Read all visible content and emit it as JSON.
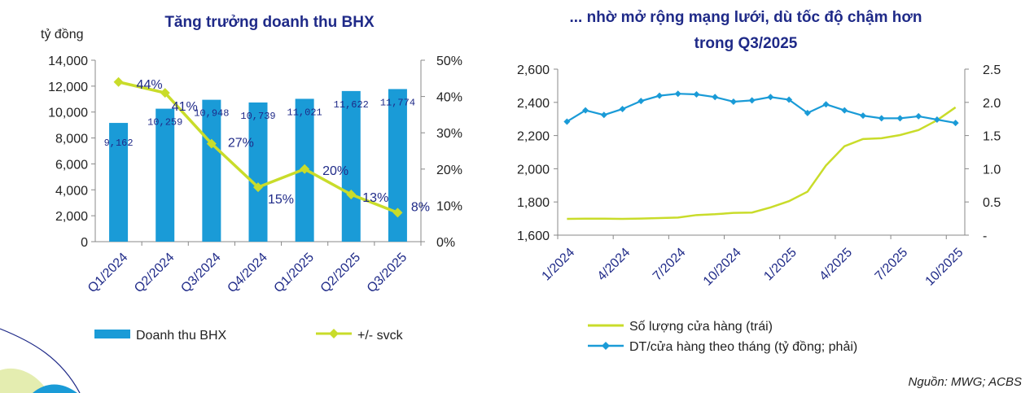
{
  "colors": {
    "bar": "#1a9bd7",
    "line": "#c9dc2a",
    "line2": "#1a9bd7",
    "title": "#1f2a88"
  },
  "source": "Nguồn: MWG; ACBS",
  "chart_data": [
    {
      "type": "bar",
      "title": "Tăng trưởng doanh thu BHX",
      "ylabel": "tỷ đồng",
      "categories": [
        "Q1/2024",
        "Q2/2024",
        "Q3/2024",
        "Q4/2024",
        "Q1/2025",
        "Q2/2025",
        "Q3/2025"
      ],
      "ylim": [
        0,
        14000
      ],
      "y_ticks": [
        "0",
        "2,000",
        "4,000",
        "6,000",
        "8,000",
        "10,000",
        "12,000",
        "14,000"
      ],
      "y2lim": [
        0,
        50
      ],
      "y2_ticks": [
        "0%",
        "10%",
        "20%",
        "30%",
        "40%",
        "50%"
      ],
      "legend": "bottom",
      "series": [
        {
          "name": "Doanh thu BHX",
          "type": "bar",
          "axis": "left",
          "values": [
            9162,
            10259,
            10948,
            10739,
            11021,
            11622,
            11774
          ],
          "labels": [
            "9,162",
            "10,259",
            "10,948",
            "10,739",
            "11,021",
            "11,622",
            "11,774"
          ]
        },
        {
          "name": "+/- svck",
          "type": "line",
          "axis": "right",
          "values": [
            44,
            41,
            27,
            15,
            20,
            13,
            8
          ],
          "labels": [
            "44%",
            "41%",
            "27%",
            "15%",
            "20%",
            "13%",
            "8%"
          ]
        }
      ]
    },
    {
      "type": "line",
      "title_lines": [
        "... nhờ mở rộng mạng lưới, dù tốc độ chậm hơn",
        "trong Q3/2025"
      ],
      "x_tick_labels": [
        "1/2024",
        "4/2024",
        "7/2024",
        "10/2024",
        "1/2025",
        "4/2025",
        "7/2025",
        "10/2025"
      ],
      "x_tick_index": [
        0,
        3,
        6,
        9,
        12,
        15,
        18,
        21
      ],
      "n_points": 22,
      "ylim": [
        1600,
        2600
      ],
      "y_ticks": [
        "1,600",
        "1,800",
        "2,000",
        "2,200",
        "2,400",
        "2,600"
      ],
      "y2lim": [
        0,
        2.5
      ],
      "y2_ticks": [
        "-",
        "0.5",
        "1.0",
        "1.5",
        "2.0",
        "2.5"
      ],
      "legend": "bottom",
      "series": [
        {
          "name": "Số lượng cửa hàng (trái)",
          "axis": "left",
          "marker": false,
          "values": [
            1698,
            1699,
            1699,
            1698,
            1700,
            1703,
            1706,
            1721,
            1726,
            1734,
            1736,
            1767,
            1805,
            1862,
            2020,
            2136,
            2179,
            2184,
            2203,
            2233,
            2292,
            2370
          ]
        },
        {
          "name": "DT/cửa hàng theo tháng (tỷ đồng; phải)",
          "axis": "right",
          "marker": true,
          "values": [
            1.71,
            1.88,
            1.81,
            1.9,
            2.02,
            2.1,
            2.13,
            2.12,
            2.08,
            2.01,
            2.03,
            2.08,
            2.04,
            1.84,
            1.97,
            1.88,
            1.8,
            1.76,
            1.76,
            1.79,
            1.74,
            1.69
          ]
        }
      ]
    }
  ]
}
